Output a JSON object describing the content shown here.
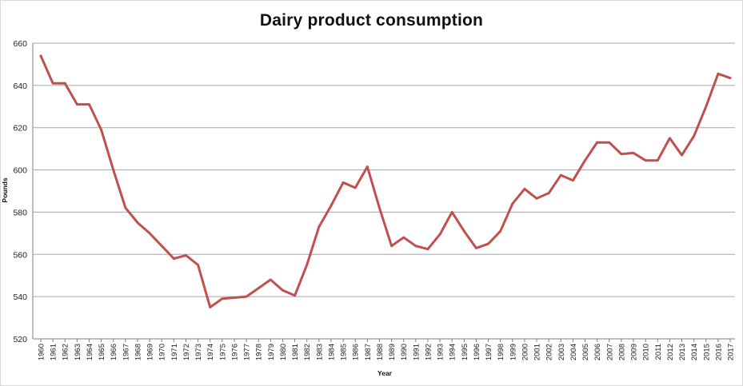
{
  "chart_data": {
    "type": "line",
    "title": "Dairy product consumption",
    "xlabel": "Year",
    "ylabel": "Pounds",
    "ylim": [
      520,
      660
    ],
    "yticks": [
      520,
      540,
      560,
      580,
      600,
      620,
      640,
      660
    ],
    "grid": true,
    "legend": "none",
    "colors": {
      "line": "#c0504d",
      "grid": "#a6a6a6",
      "axis": "#7f7f7f"
    },
    "x": [
      "1960",
      "1961",
      "1962",
      "1963",
      "1964",
      "1965",
      "1966",
      "1967",
      "1968",
      "1969",
      "1970",
      "1971",
      "1972",
      "1973",
      "1974",
      "1975",
      "1976",
      "1977",
      "1978",
      "1979",
      "1980",
      "1981",
      "1982",
      "1983",
      "1984",
      "1985",
      "1986",
      "1987",
      "1988",
      "1989",
      "1990",
      "1991",
      "1992",
      "1993",
      "1994",
      "1995",
      "1996",
      "1997",
      "1998",
      "1999",
      "2000",
      "2001",
      "2002",
      "2003",
      "2004",
      "2005",
      "2006",
      "2007",
      "2008",
      "2009",
      "2010",
      "2011",
      "2012",
      "2013",
      "2014",
      "2015",
      "2016",
      "2017"
    ],
    "series": [
      {
        "values": [
          654,
          641,
          641,
          631,
          631,
          619,
          600,
          582,
          575,
          570,
          564,
          558,
          559.5,
          555,
          535,
          539,
          539.5,
          540,
          544,
          548,
          543,
          540.5,
          555,
          573,
          583,
          594,
          591.5,
          601.5,
          582,
          564,
          568,
          564,
          562.5,
          569.5,
          580,
          571,
          563,
          565,
          571,
          584,
          591,
          586.5,
          589,
          597.5,
          595,
          604.5,
          613,
          613,
          607.5,
          608,
          604.5,
          604.5,
          615,
          607,
          616,
          630,
          645.5,
          643.5
        ]
      }
    ]
  }
}
